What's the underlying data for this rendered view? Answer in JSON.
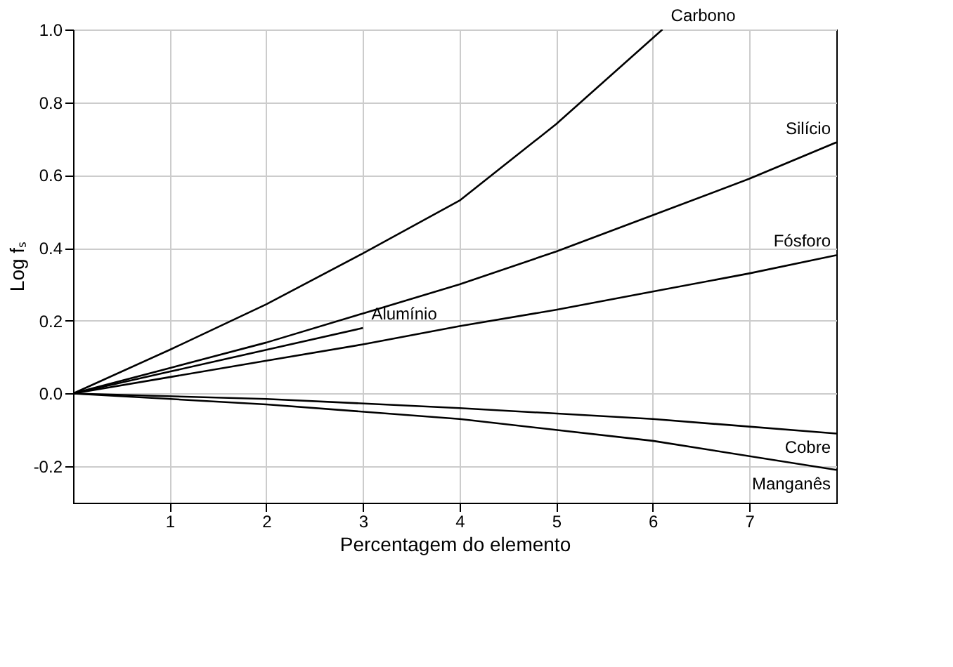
{
  "chart_data": {
    "type": "line",
    "xlabel": "Percentagem do elemento",
    "ylabel": "Log fₛ",
    "xlim": [
      0,
      7.9
    ],
    "ylim": [
      -0.3,
      1.0
    ],
    "xticks": [
      1,
      2,
      3,
      4,
      5,
      6,
      7
    ],
    "yticks": [
      {
        "value": -0.2,
        "label": "-0.2"
      },
      {
        "value": 0,
        "label": "0.0"
      },
      {
        "value": 0.2,
        "label": "0.2"
      },
      {
        "value": 0.4,
        "label": "0.4"
      },
      {
        "value": 0.6,
        "label": "0.6"
      },
      {
        "value": 0.8,
        "label": "0.8"
      },
      {
        "value": 1.0,
        "label": "1.0"
      }
    ],
    "grid": true,
    "marker": "none",
    "line_style": "solid",
    "series": [
      {
        "name": "Carbono",
        "color": "#000000",
        "x": [
          0,
          1,
          2,
          3,
          4,
          5,
          6.1
        ],
        "values": [
          0,
          0.12,
          0.245,
          0.385,
          0.53,
          0.74,
          1.0
        ]
      },
      {
        "name": "Silício",
        "color": "#000000",
        "x": [
          0,
          1,
          2,
          3,
          4,
          5,
          6,
          7,
          7.9
        ],
        "values": [
          0,
          0.07,
          0.14,
          0.22,
          0.3,
          0.39,
          0.49,
          0.59,
          0.69
        ]
      },
      {
        "name": "Fósforo",
        "color": "#000000",
        "x": [
          0,
          1,
          2,
          3,
          4,
          5,
          6,
          7,
          7.9
        ],
        "values": [
          0,
          0.045,
          0.09,
          0.135,
          0.185,
          0.23,
          0.28,
          0.33,
          0.38
        ]
      },
      {
        "name": "Alumínio",
        "color": "#000000",
        "x": [
          0,
          1,
          2,
          3
        ],
        "values": [
          0,
          0.06,
          0.12,
          0.18
        ]
      },
      {
        "name": "Cobre",
        "color": "#000000",
        "x": [
          0,
          2,
          4,
          6,
          7.9
        ],
        "values": [
          0,
          -0.015,
          -0.04,
          -0.07,
          -0.11
        ]
      },
      {
        "name": "Manganês",
        "color": "#000000",
        "x": [
          0,
          2,
          4,
          6,
          7.9
        ],
        "values": [
          0,
          -0.03,
          -0.07,
          -0.13,
          -0.21
        ]
      }
    ]
  }
}
